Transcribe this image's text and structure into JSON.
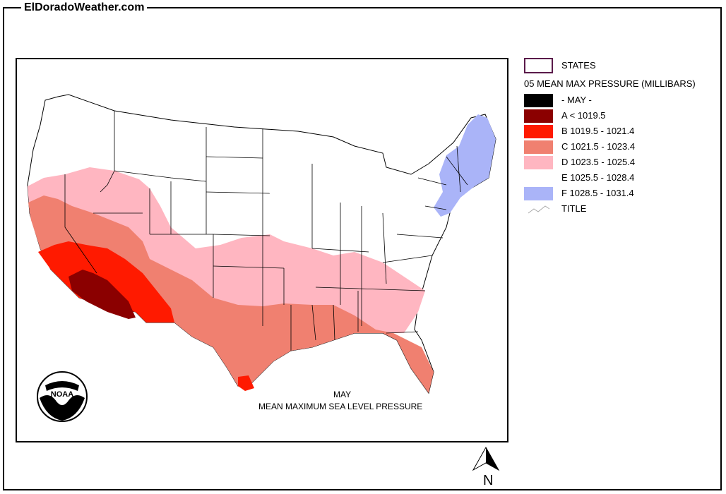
{
  "site": {
    "title": "ElDoradoWeather.com"
  },
  "legend": {
    "states_label": "STATES",
    "header": "05 MEAN MAX PRESSURE (MILLIBARS)",
    "items": [
      {
        "label": "- MAY -",
        "color": "#000000"
      },
      {
        "label": "A < 1019.5",
        "color": "#8b0000"
      },
      {
        "label": "B 1019.5 - 1021.4",
        "color": "#ff1a00"
      },
      {
        "label": "C 1021.5 - 1023.4",
        "color": "#f08070"
      },
      {
        "label": "D 1023.5 - 1025.4",
        "color": "#ffb6c1"
      },
      {
        "label": "E 1025.5 - 1028.4",
        "color": "#ffffff"
      },
      {
        "label": "F 1028.5 - 1031.4",
        "color": "#aab4f8"
      }
    ],
    "title_label": "TITLE",
    "states_border_color": "#5a1a4a"
  },
  "map": {
    "caption_line1": "MAY",
    "caption_line2": "MEAN MAXIMUM SEA LEVEL PRESSURE",
    "logo_text": "NOAA",
    "north_label": "N"
  }
}
